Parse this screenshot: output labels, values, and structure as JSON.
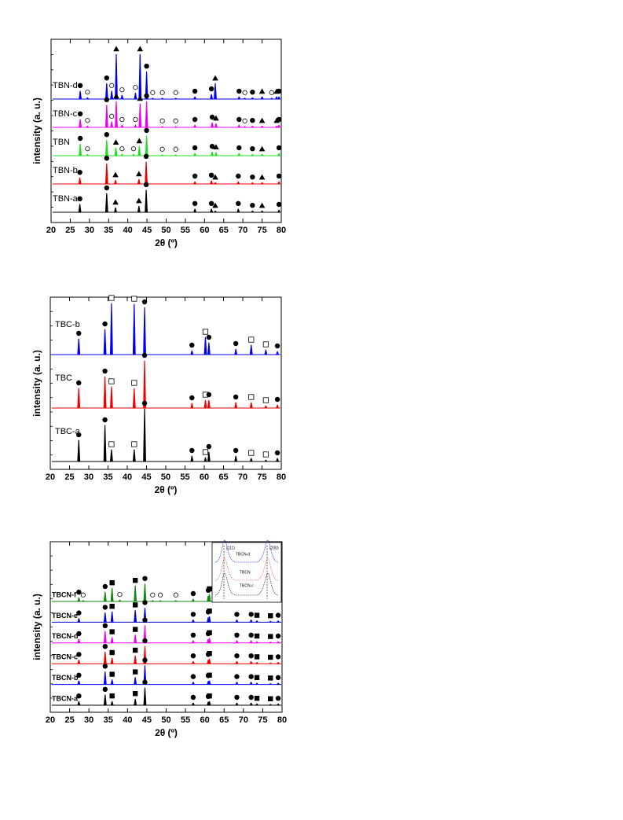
{
  "chart_data": [
    {
      "type": "line",
      "y_label": "intensity (a. u.)",
      "x_label": "2θ (º)",
      "xlim": [
        20,
        80
      ],
      "xticks": [
        20,
        25,
        30,
        35,
        40,
        45,
        50,
        55,
        60,
        65,
        70,
        75,
        80
      ],
      "ylim": [
        0,
        100
      ],
      "series": [
        {
          "name": "TBN-d",
          "color": "#0000ee",
          "x": [
            27.6,
            29.5,
            34.5,
            35.8,
            37,
            38.5,
            42,
            43.2,
            44.9,
            46.5,
            49,
            52.5,
            57.5,
            61.8,
            62.8,
            69,
            70.5,
            72.5,
            75,
            77.5,
            78.8,
            79.4
          ],
          "values": [
            17,
            3,
            33,
            17,
            95,
            8,
            13,
            95,
            58,
            2,
            2,
            2,
            5,
            10,
            33,
            5,
            2,
            3,
            5,
            2,
            5,
            5
          ],
          "phases": [
            "circle",
            "open-circle",
            "circle",
            "open-circle",
            "triangle",
            "open-circle",
            "open-circle",
            "triangle",
            "circle",
            "open-circle",
            "open-circle",
            "open-circle",
            "circle",
            "circle",
            "triangle",
            "circle",
            "open-circle",
            "circle",
            "triangle",
            "open-circle",
            "triangle",
            "circle"
          ]
        },
        {
          "name": "TBN-c",
          "color": "#ee00ee",
          "x": [
            27.6,
            29.5,
            34.5,
            35.8,
            37,
            38.5,
            42,
            43.2,
            44.9,
            49,
            52.5,
            57.5,
            62,
            63,
            69,
            70.5,
            72.5,
            75,
            78.8,
            79.4
          ],
          "values": [
            17,
            3,
            47,
            12,
            55,
            5,
            5,
            50,
            55,
            2,
            2,
            5,
            10,
            8,
            5,
            2,
            3,
            3,
            3,
            5
          ],
          "phases": [
            "circle",
            "open-circle",
            "circle",
            "open-circle",
            "triangle",
            "open-circle",
            "open-circle",
            "triangle",
            "circle",
            "open-circle",
            "open-circle",
            "circle",
            "circle",
            "triangle",
            "circle",
            "open-circle",
            "circle",
            "triangle",
            "triangle",
            "circle"
          ]
        },
        {
          "name": "TBN",
          "color": "#22dd22",
          "x": [
            27.6,
            29.5,
            34.5,
            36.9,
            38.5,
            41.5,
            43,
            44.9,
            49,
            52.5,
            57.5,
            62,
            63,
            69,
            72.5,
            75,
            79.4
          ],
          "values": [
            25,
            3,
            33,
            17,
            3,
            3,
            20,
            42,
            2,
            2,
            5,
            8,
            7,
            5,
            3,
            3,
            5
          ],
          "phases": [
            "circle",
            "open-circle",
            "circle",
            "triangle",
            "open-circle",
            "open-circle",
            "triangle",
            "circle",
            "open-circle",
            "open-circle",
            "circle",
            "circle",
            "triangle",
            "circle",
            "circle",
            "triangle",
            "circle"
          ]
        },
        {
          "name": "TBN-b",
          "color": "#ee0000",
          "x": [
            27.5,
            34.5,
            36.8,
            42.9,
            44.8,
            57.5,
            61.8,
            62.8,
            68.8,
            72.5,
            75,
            79.4
          ],
          "values": [
            13,
            43,
            8,
            10,
            47,
            5,
            7,
            3,
            5,
            3,
            3,
            5
          ],
          "phases": [
            "circle",
            "circle",
            "triangle",
            "triangle",
            "circle",
            "circle",
            "circle",
            "triangle",
            "circle",
            "circle",
            "triangle",
            "circle"
          ]
        },
        {
          "name": "TBN-a",
          "color": "#000000",
          "x": [
            27.5,
            34.5,
            36.8,
            42.9,
            44.8,
            57.5,
            61.8,
            62.8,
            68.8,
            72.5,
            75,
            79.4
          ],
          "values": [
            17,
            40,
            10,
            13,
            47,
            7,
            7,
            3,
            7,
            3,
            3,
            5
          ],
          "phases": [
            "circle",
            "circle",
            "triangle",
            "triangle",
            "circle",
            "circle",
            "circle",
            "triangle",
            "circle",
            "circle",
            "triangle",
            "circle"
          ]
        }
      ]
    },
    {
      "type": "line",
      "y_label": "intensity (a. u.)",
      "x_label": "2θ (º)",
      "xlim": [
        20,
        80
      ],
      "xticks": [
        20,
        25,
        30,
        35,
        40,
        45,
        50,
        55,
        60,
        65,
        70,
        75,
        80
      ],
      "ylim": [
        0,
        100
      ],
      "series": [
        {
          "name": "TBC-b",
          "color": "#0000ee",
          "x": [
            27.4,
            34.2,
            35.9,
            41.8,
            44.5,
            56.8,
            60.3,
            61.2,
            68.2,
            72.2,
            76,
            79
          ],
          "values": [
            20,
            32,
            65,
            64,
            60,
            5,
            22,
            15,
            7,
            12,
            6,
            4
          ],
          "phases": [
            "circle",
            "circle",
            "open-square",
            "open-square",
            "circle",
            "circle",
            "open-square",
            "circle",
            "circle",
            "open-square",
            "open-square",
            "circle"
          ]
        },
        {
          "name": "TBC",
          "color": "#ee0000",
          "x": [
            27.4,
            34.2,
            35.9,
            41.8,
            44.5,
            56.8,
            60.3,
            61.2,
            68.2,
            72.2,
            76,
            79
          ],
          "values": [
            25,
            40,
            27,
            25,
            60,
            6,
            10,
            10,
            7,
            7,
            3,
            4
          ],
          "phases": [
            "circle",
            "circle",
            "open-square",
            "open-square",
            "circle",
            "circle",
            "open-square",
            "circle",
            "circle",
            "open-square",
            "open-square",
            "circle"
          ]
        },
        {
          "name": "TBC-a",
          "color": "#000000",
          "x": [
            27.4,
            34.2,
            35.9,
            41.8,
            44.5,
            56.8,
            60.3,
            61.2,
            68.2,
            72.2,
            76,
            79
          ],
          "values": [
            27,
            46,
            15,
            15,
            67,
            7,
            5,
            12,
            7,
            4,
            2,
            4
          ],
          "phases": [
            "circle",
            "circle",
            "open-square",
            "open-square",
            "circle",
            "circle",
            "open-square",
            "circle",
            "circle",
            "open-square",
            "open-square",
            "circle"
          ]
        }
      ]
    },
    {
      "type": "line",
      "y_label": "intensity (a. u.)",
      "x_label": "2θ (º)",
      "xlim": [
        20,
        80
      ],
      "xticks": [
        20,
        25,
        30,
        35,
        40,
        45,
        50,
        55,
        60,
        65,
        70,
        75,
        80
      ],
      "ylim": [
        0,
        100
      ],
      "inset_labels": [
        "(111)",
        "(200)",
        "TBCN-d",
        "TBCN",
        "TBCN-c"
      ],
      "series": [
        {
          "name": "TBCN-f",
          "color": "#118811",
          "x": [
            27.4,
            28.5,
            34.2,
            36,
            38,
            42,
            44.5,
            46.5,
            48.5,
            52.5,
            57,
            60.9,
            61.2,
            68.3,
            72,
            73.5,
            77,
            79
          ],
          "values": [
            8,
            2,
            20,
            28,
            3,
            33,
            37,
            2,
            2,
            2,
            5,
            12,
            15,
            5,
            5,
            3,
            2,
            3
          ],
          "phases": [
            "circle",
            "open-circle",
            "circle",
            "square",
            "open-circle",
            "square",
            "circle",
            "open-circle",
            "open-circle",
            "open-circle",
            "circle",
            "circle",
            "square",
            "circle",
            "circle",
            "square",
            "square",
            "circle"
          ]
        },
        {
          "name": "TBCN-e",
          "color": "#0000cc",
          "x": [
            27.4,
            34.2,
            36,
            42,
            44.5,
            57,
            60.9,
            61.2,
            68.3,
            72,
            73.5,
            77,
            79
          ],
          "values": [
            8,
            20,
            22,
            25,
            30,
            5,
            10,
            12,
            5,
            5,
            3,
            2,
            3
          ],
          "phases": [
            "circle",
            "circle",
            "square",
            "square",
            "circle",
            "circle",
            "circle",
            "square",
            "circle",
            "circle",
            "square",
            "square",
            "circle"
          ]
        },
        {
          "name": "TBCN-d",
          "color": "#ee00ee",
          "x": [
            27.4,
            34.2,
            36,
            42,
            44.5,
            57,
            60.9,
            61.2,
            68.3,
            72,
            73.5,
            77,
            79
          ],
          "values": [
            8,
            25,
            12,
            17,
            37,
            5,
            8,
            10,
            5,
            5,
            3,
            2,
            3
          ],
          "phases": [
            "circle",
            "circle",
            "square",
            "square",
            "circle",
            "circle",
            "circle",
            "square",
            "circle",
            "circle",
            "square",
            "square",
            "circle"
          ]
        },
        {
          "name": "TBCN-c",
          "color": "#ee0000",
          "x": [
            27.4,
            34.2,
            36,
            42,
            44.5,
            57,
            60.9,
            61.2,
            68.3,
            72,
            73.5,
            77,
            79
          ],
          "values": [
            8,
            25,
            12,
            17,
            37,
            5,
            8,
            10,
            5,
            5,
            3,
            2,
            3
          ],
          "phases": [
            "circle",
            "circle",
            "square",
            "square",
            "circle",
            "circle",
            "circle",
            "square",
            "circle",
            "circle",
            "square",
            "square",
            "circle"
          ]
        },
        {
          "name": "TBCN-b",
          "color": "#0000ee",
          "x": [
            27.4,
            34.2,
            36,
            42,
            44.5,
            57,
            60.9,
            61.2,
            68.3,
            72,
            73.5,
            77,
            79
          ],
          "values": [
            8,
            27,
            10,
            15,
            40,
            5,
            7,
            8,
            5,
            5,
            3,
            2,
            3
          ],
          "phases": [
            "circle",
            "circle",
            "square",
            "square",
            "circle",
            "circle",
            "circle",
            "square",
            "circle",
            "circle",
            "square",
            "square",
            "circle"
          ]
        },
        {
          "name": "TBCN-a",
          "color": "#000000",
          "x": [
            27.4,
            34.2,
            36,
            42,
            44.5,
            57,
            60.9,
            61.2,
            68.3,
            72,
            73.5,
            77,
            79
          ],
          "values": [
            8,
            22,
            8,
            13,
            37,
            5,
            7,
            8,
            5,
            5,
            3,
            2,
            3
          ],
          "phases": [
            "circle",
            "circle",
            "square",
            "square",
            "circle",
            "circle",
            "circle",
            "square",
            "circle",
            "circle",
            "square",
            "square",
            "circle"
          ]
        }
      ]
    }
  ]
}
